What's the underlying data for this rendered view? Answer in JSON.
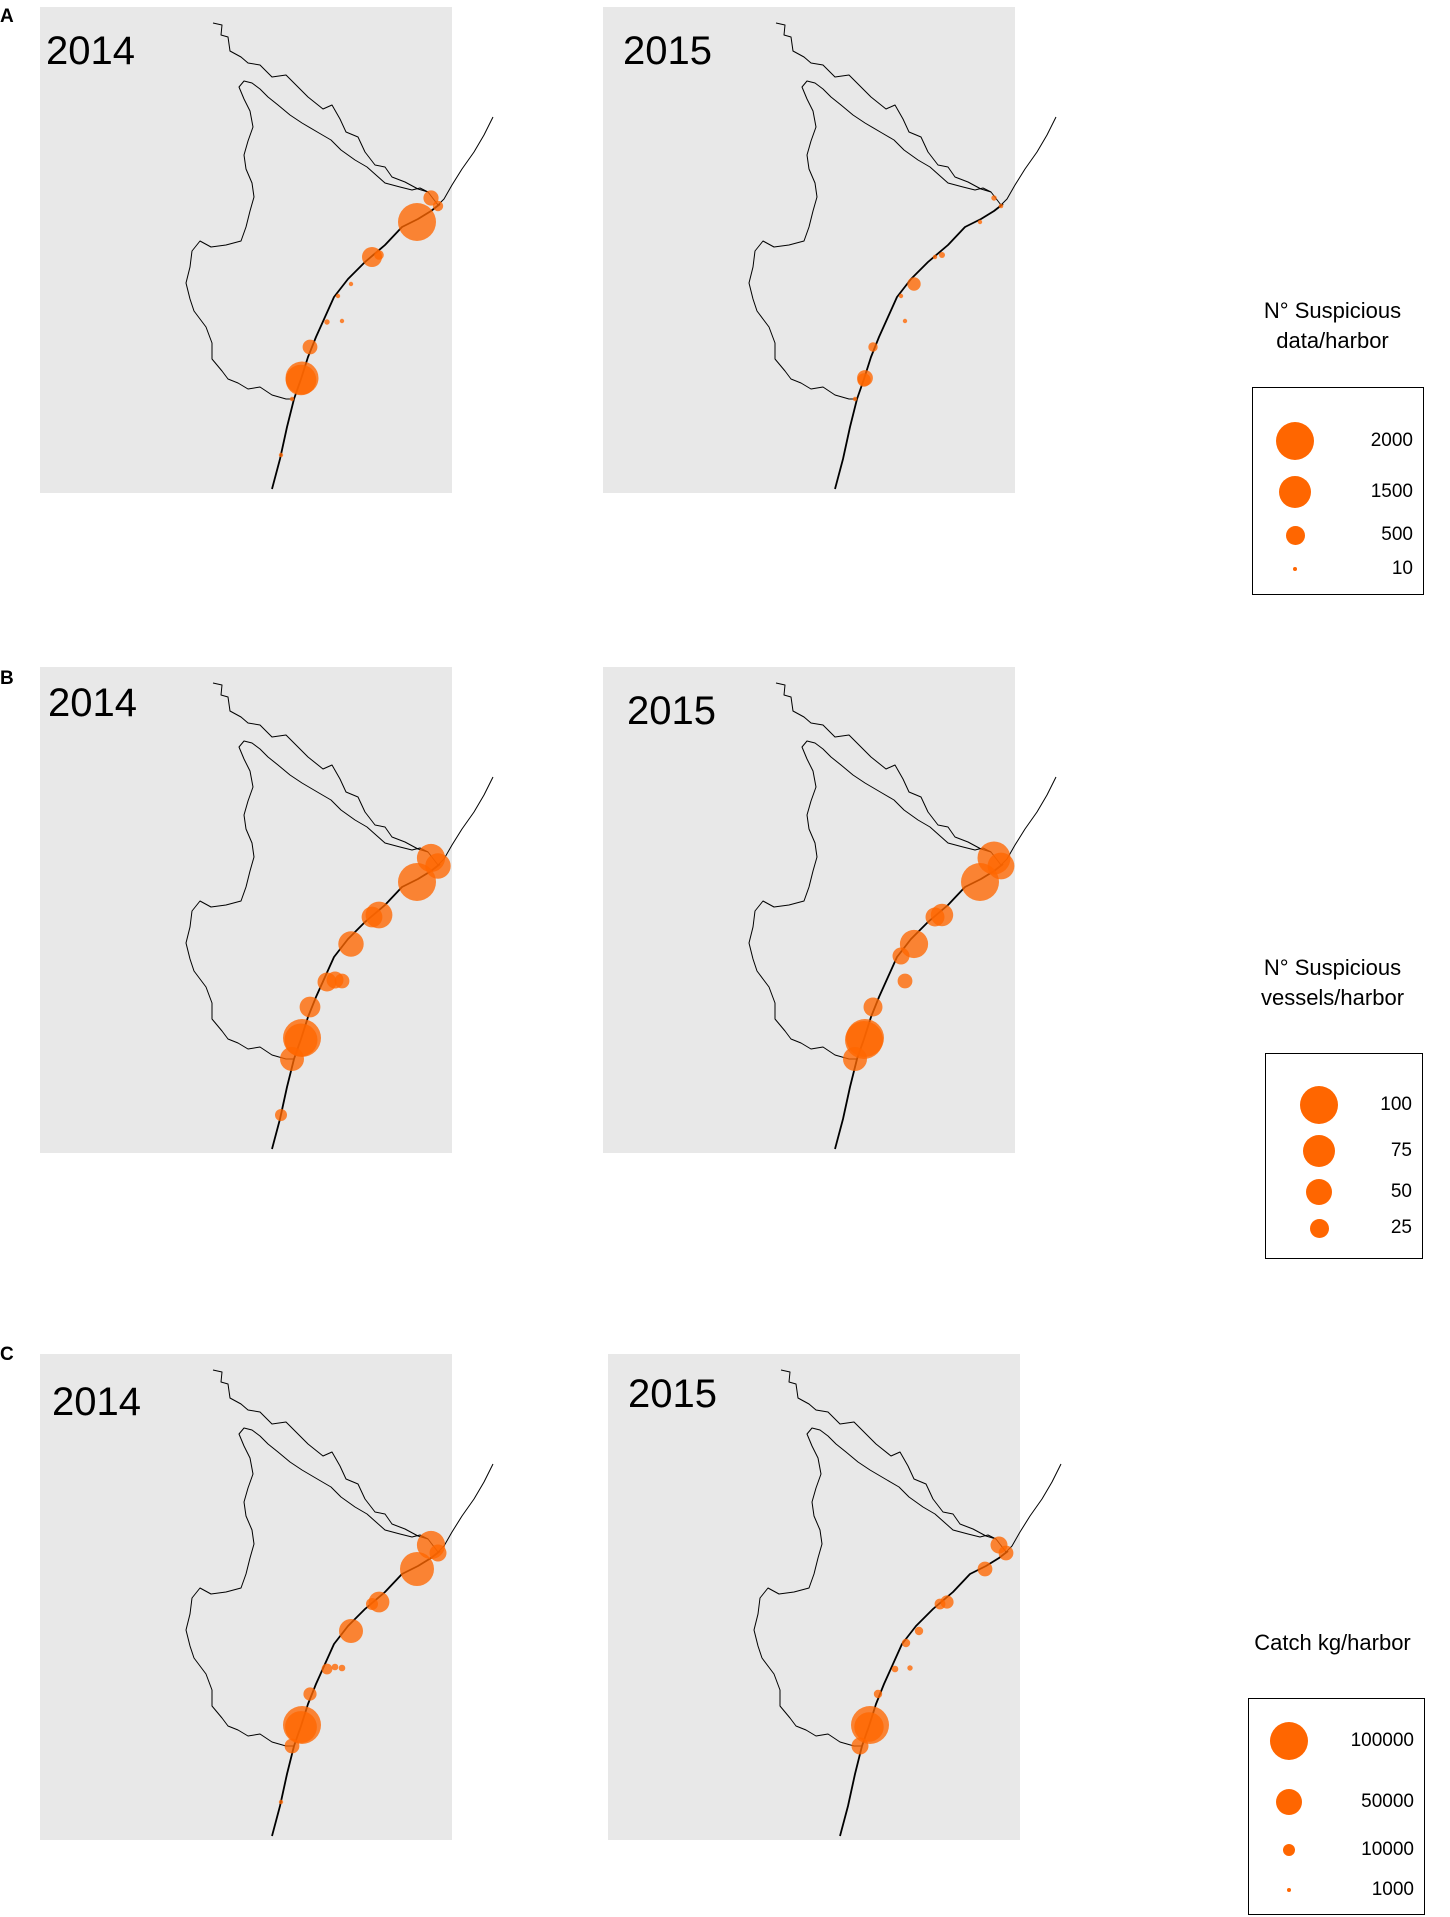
{
  "figure": {
    "colors": {
      "map_bg": "#e8e8e8",
      "coast": "#000000",
      "marker": "#ff6600",
      "marker_overlap": "#ff0000"
    },
    "panels": [
      {
        "letter": "A",
        "maps": [
          {
            "year": "2014",
            "harbors": [
              {
                "loc": "h1",
                "v": 320
              },
              {
                "loc": "h2",
                "v": 2000
              },
              {
                "loc": "h3",
                "v": 150
              },
              {
                "loc": "h4",
                "v": 130
              },
              {
                "loc": "h5",
                "v": 550
              },
              {
                "loc": "h6",
                "v": 10
              },
              {
                "loc": "h7",
                "v": 20
              },
              {
                "loc": "h8",
                "v": 20
              },
              {
                "loc": "h9",
                "v": 40
              },
              {
                "loc": "h11",
                "v": 300
              },
              {
                "loc": "h12",
                "v": 1500
              },
              {
                "loc": "h13",
                "v": 1300
              },
              {
                "loc": "h14",
                "v": 10
              },
              {
                "loc": "h15",
                "v": 10
              }
            ]
          },
          {
            "year": "2015",
            "harbors": [
              {
                "loc": "h1",
                "v": 40
              },
              {
                "loc": "h2",
                "v": 10
              },
              {
                "loc": "h3",
                "v": 30
              },
              {
                "loc": "h4",
                "v": 50
              },
              {
                "loc": "h5",
                "v": 10
              },
              {
                "loc": "h6",
                "v": 250
              },
              {
                "loc": "h7",
                "v": 10
              },
              {
                "loc": "h8",
                "v": 10
              },
              {
                "loc": "h11",
                "v": 120
              },
              {
                "loc": "h12",
                "v": 350
              },
              {
                "loc": "h13",
                "v": 250
              },
              {
                "loc": "h14",
                "v": 10
              }
            ]
          }
        ],
        "legend": {
          "title_lines": [
            "N° Suspicious",
            "data/harbor"
          ],
          "items": [
            {
              "label": "2000",
              "v": 2000
            },
            {
              "label": "1500",
              "v": 1500
            },
            {
              "label": "500",
              "v": 500
            },
            {
              "label": "10",
              "v": 10
            }
          ]
        }
      },
      {
        "letter": "B",
        "maps": [
          {
            "year": "2014",
            "harbors": [
              {
                "loc": "h1",
                "v": 55
              },
              {
                "loc": "h2",
                "v": 100
              },
              {
                "loc": "h3",
                "v": 45
              },
              {
                "loc": "h4",
                "v": 50
              },
              {
                "loc": "h5",
                "v": 30
              },
              {
                "loc": "h6",
                "v": 45
              },
              {
                "loc": "h8",
                "v": 15
              },
              {
                "loc": "h9",
                "v": 25
              },
              {
                "loc": "h10",
                "v": 20
              },
              {
                "loc": "h11",
                "v": 30
              },
              {
                "loc": "h12",
                "v": 100
              },
              {
                "loc": "h13",
                "v": 75
              },
              {
                "loc": "h14",
                "v": 40
              },
              {
                "loc": "h15",
                "v": 10
              }
            ]
          },
          {
            "year": "2015",
            "harbors": [
              {
                "loc": "h1",
                "v": 75
              },
              {
                "loc": "h2",
                "v": 100
              },
              {
                "loc": "h3",
                "v": 50
              },
              {
                "loc": "h4",
                "v": 35
              },
              {
                "loc": "h5",
                "v": 25
              },
              {
                "loc": "h6",
                "v": 55
              },
              {
                "loc": "h7",
                "v": 20
              },
              {
                "loc": "h8",
                "v": 15
              },
              {
                "loc": "h11",
                "v": 25
              },
              {
                "loc": "h12",
                "v": 100
              },
              {
                "loc": "h13",
                "v": 100
              },
              {
                "loc": "h14",
                "v": 40
              }
            ]
          }
        ],
        "legend": {
          "title_lines": [
            "N° Suspicious",
            "vessels/harbor"
          ],
          "items": [
            {
              "label": "100",
              "v": 100
            },
            {
              "label": "75",
              "v": 75
            },
            {
              "label": "50",
              "v": 50
            },
            {
              "label": "25",
              "v": 25
            }
          ]
        }
      },
      {
        "letter": "C",
        "maps": [
          {
            "year": "2014",
            "harbors": [
              {
                "loc": "h1",
                "v": 55000
              },
              {
                "loc": "h2",
                "v": 80000
              },
              {
                "loc": "h3",
                "v": 20000
              },
              {
                "loc": "h4",
                "v": 30000
              },
              {
                "loc": "h5",
                "v": 10000
              },
              {
                "loc": "h6",
                "v": 40000
              },
              {
                "loc": "h8",
                "v": 3000
              },
              {
                "loc": "h9",
                "v": 8000
              },
              {
                "loc": "h10",
                "v": 3000
              },
              {
                "loc": "h11",
                "v": 12000
              },
              {
                "loc": "h12",
                "v": 100000
              },
              {
                "loc": "h13",
                "v": 70000
              },
              {
                "loc": "h14",
                "v": 15000
              },
              {
                "loc": "h15",
                "v": 1000
              }
            ]
          },
          {
            "year": "2015",
            "harbors": [
              {
                "loc": "h1",
                "v": 20000
              },
              {
                "loc": "h2",
                "v": 15000
              },
              {
                "loc": "h3",
                "v": 15000
              },
              {
                "loc": "h4",
                "v": 12000
              },
              {
                "loc": "h5",
                "v": 8000
              },
              {
                "loc": "h6",
                "v": 5000
              },
              {
                "loc": "h7",
                "v": 5000
              },
              {
                "loc": "h8",
                "v": 2000
              },
              {
                "loc": "h9",
                "v": 3000
              },
              {
                "loc": "h11",
                "v": 5000
              },
              {
                "loc": "h12",
                "v": 100000
              },
              {
                "loc": "h13",
                "v": 60000
              },
              {
                "loc": "h14",
                "v": 20000
              }
            ]
          }
        ],
        "legend": {
          "title_lines": [
            "Catch kg/harbor"
          ],
          "items": [
            {
              "label": "100000",
              "v": 100000
            },
            {
              "label": "50000",
              "v": 50000
            },
            {
              "label": "10000",
              "v": 10000
            },
            {
              "label": "1000",
              "v": 1000
            }
          ]
        }
      }
    ]
  }
}
